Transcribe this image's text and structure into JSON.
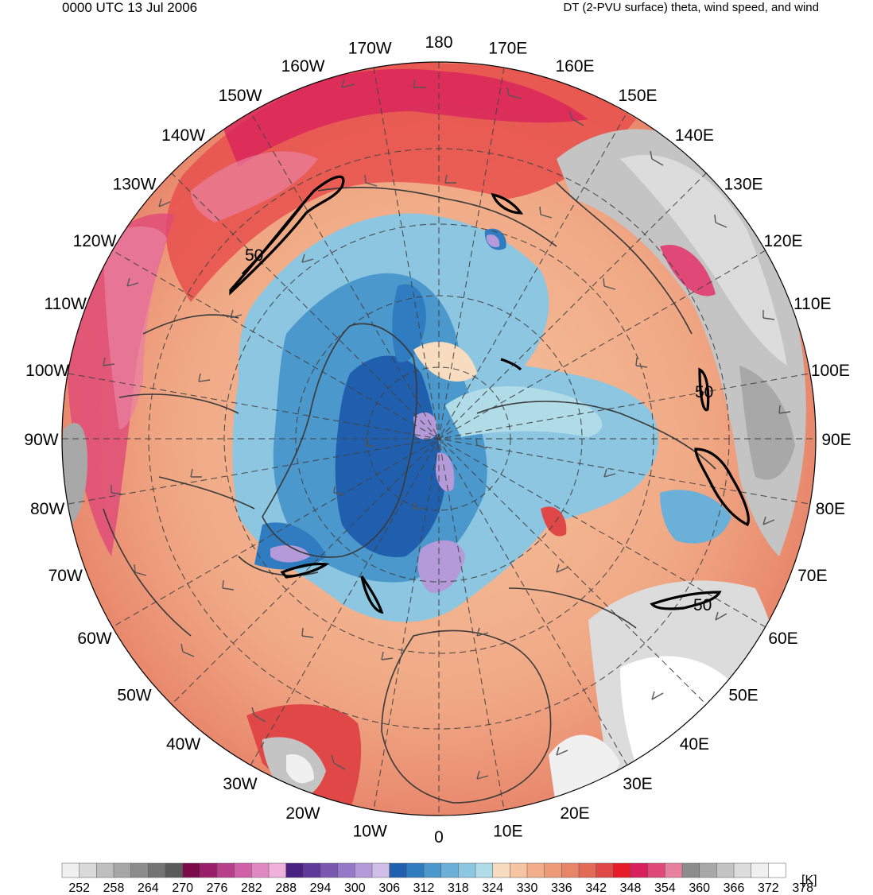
{
  "header": {
    "datetime": "0000 UTC 13 Jul 2006",
    "title": "DT (2-PVU surface) theta, wind speed, and wind"
  },
  "longitude_labels": [
    "180",
    "170E",
    "160E",
    "150E",
    "140E",
    "130E",
    "120E",
    "110E",
    "100E",
    "90E",
    "80E",
    "70E",
    "60E",
    "50E",
    "40E",
    "30E",
    "20E",
    "10E",
    "0",
    "10W",
    "20W",
    "30W",
    "40W",
    "50W",
    "60W",
    "70W",
    "80W",
    "90W",
    "100W",
    "110W",
    "120W",
    "130W",
    "140W",
    "150W",
    "160W",
    "170W"
  ],
  "contour_labels": [
    "50",
    "50",
    "50"
  ],
  "colorbar": {
    "unit": "[K]",
    "tick_labels": [
      "252",
      "258",
      "264",
      "270",
      "276",
      "282",
      "288",
      "294",
      "300",
      "306",
      "312",
      "318",
      "324",
      "330",
      "336",
      "342",
      "348",
      "354",
      "360",
      "366",
      "372",
      "378"
    ],
    "colors": [
      "#f0f0f0",
      "#d9d9d9",
      "#bfbfbf",
      "#a6a6a6",
      "#8c8c8c",
      "#737373",
      "#5a5a5a",
      "#7a0a4a",
      "#9a1e6a",
      "#b8408a",
      "#d060a8",
      "#e088c0",
      "#f0b0dc",
      "#4a2080",
      "#5e3a9a",
      "#7a58b2",
      "#9678c8",
      "#b49ad8",
      "#cebee8",
      "#1f5fae",
      "#2f7cc0",
      "#4a98cc",
      "#6ab0d8",
      "#8cc6e0",
      "#b0dce8",
      "#f8dcc0",
      "#f6c4a0",
      "#f2ae88",
      "#ee9a78",
      "#e88468",
      "#e46a58",
      "#e04848",
      "#e81c28",
      "#d8205c",
      "#e04878",
      "#e880a0",
      "#8c8c8c",
      "#a8a8a8",
      "#c4c4c4",
      "#dcdcdc",
      "#f0f0f0",
      "#ffffff"
    ]
  }
}
